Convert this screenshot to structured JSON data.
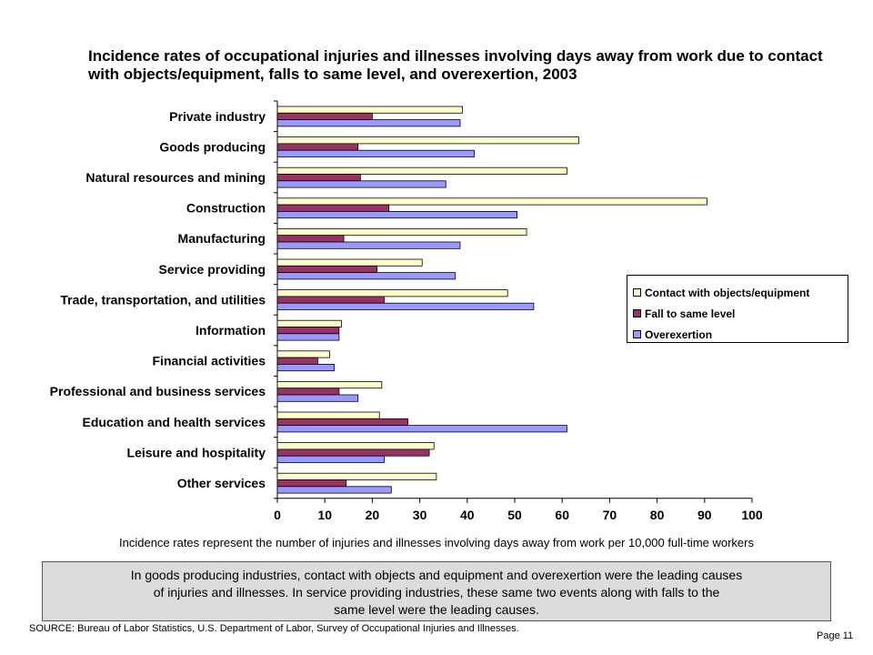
{
  "title": "Incidence rates of occupational injuries and illnesses involving days away from work due to contact with objects/equipment, falls to same level, and overexertion, 2003",
  "chart_data": {
    "type": "bar",
    "orientation": "horizontal",
    "title": "Incidence rates of occupational injuries and illnesses involving days away from work due to contact with objects/equipment, falls to same level, and overexertion, 2003",
    "categories": [
      "Private industry",
      "Goods producing",
      "Natural resources and mining",
      "Construction",
      "Manufacturing",
      "Service providing",
      "Trade, transportation, and utilities",
      "Information",
      "Financial activities",
      "Professional and business services",
      "Education and health services",
      "Leisure and hospitality",
      "Other services"
    ],
    "series": [
      {
        "name": "Contact with objects/equipment",
        "color": "#ffffcc",
        "values": [
          39,
          63.5,
          61,
          90.5,
          52.5,
          30.5,
          48.5,
          13.5,
          11,
          22,
          21.5,
          33,
          33.5
        ]
      },
      {
        "name": "Fall to same level",
        "color": "#993366",
        "values": [
          20,
          17,
          17.5,
          23.5,
          14,
          21,
          22.5,
          13,
          8.5,
          13,
          27.5,
          32,
          14.5
        ]
      },
      {
        "name": "Overexertion",
        "color": "#9999ff",
        "values": [
          38.5,
          41.5,
          35.5,
          50.5,
          38.5,
          37.5,
          54,
          13,
          12,
          17,
          61,
          22.5,
          24
        ]
      }
    ],
    "xlim": [
      0,
      100
    ],
    "xticks": [
      "0",
      "10",
      "20",
      "30",
      "40",
      "50",
      "60",
      "70",
      "80",
      "90",
      "100"
    ],
    "grid": false,
    "legend_position": "right"
  },
  "legend": [
    {
      "label": "Contact with objects/equipment",
      "color": "#ffffcc"
    },
    {
      "label": "Fall to same level",
      "color": "#993366"
    },
    {
      "label": "Overexertion",
      "color": "#9999ff"
    }
  ],
  "note": "Incidence rates represent the number of injuries and illnesses involving days away from work per 10,000 full-time workers",
  "callout": [
    "In goods producing industries, contact with objects and equipment and overexertion were the leading causes",
    "of injuries and illnesses.  In service providing industries, these same two events along with falls to the",
    "same level were the leading causes."
  ],
  "source": "SOURCE:   Bureau of Labor Statistics, U.S. Department of Labor, Survey of Occupational Injuries and Illnesses.",
  "page": "Page 11"
}
